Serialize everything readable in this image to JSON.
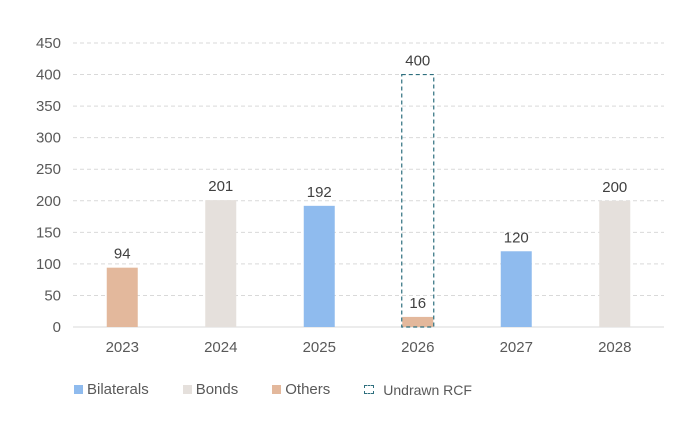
{
  "chart_data": {
    "type": "bar",
    "categories": [
      "2023",
      "2024",
      "2025",
      "2026",
      "2027",
      "2028"
    ],
    "ylim": [
      0,
      450
    ],
    "yticks": [
      0,
      50,
      100,
      150,
      200,
      250,
      300,
      350,
      400,
      450
    ],
    "grid": true,
    "legend_position": "bottom-left",
    "series": [
      {
        "name": "Bilaterals",
        "color": "#8fbbee",
        "values": [
          0,
          0,
          192,
          0,
          120,
          0
        ]
      },
      {
        "name": "Bonds",
        "color": "#e5e0dc",
        "values": [
          0,
          201,
          0,
          0,
          0,
          200
        ]
      },
      {
        "name": "Others",
        "color": "#e3b89c",
        "values": [
          94,
          0,
          0,
          16,
          0,
          0
        ]
      },
      {
        "name": "Undrawn RCF",
        "color": "#2e6f7e",
        "style": "dashed-outline",
        "values": [
          0,
          0,
          0,
          400,
          0,
          0
        ]
      }
    ],
    "data_labels": [
      {
        "category": "2023",
        "series": "Others",
        "text": "94"
      },
      {
        "category": "2024",
        "series": "Bonds",
        "text": "201"
      },
      {
        "category": "2025",
        "series": "Bilaterals",
        "text": "192"
      },
      {
        "category": "2026",
        "series": "Others",
        "text": "16"
      },
      {
        "category": "2026",
        "series": "Undrawn RCF",
        "text": "400"
      },
      {
        "category": "2027",
        "series": "Bilaterals",
        "text": "120"
      },
      {
        "category": "2028",
        "series": "Bonds",
        "text": "200"
      }
    ]
  },
  "legend": {
    "bilaterals": "Bilaterals",
    "bonds": "Bonds",
    "others": "Others",
    "undrawn_rcf": "Undrawn RCF"
  }
}
